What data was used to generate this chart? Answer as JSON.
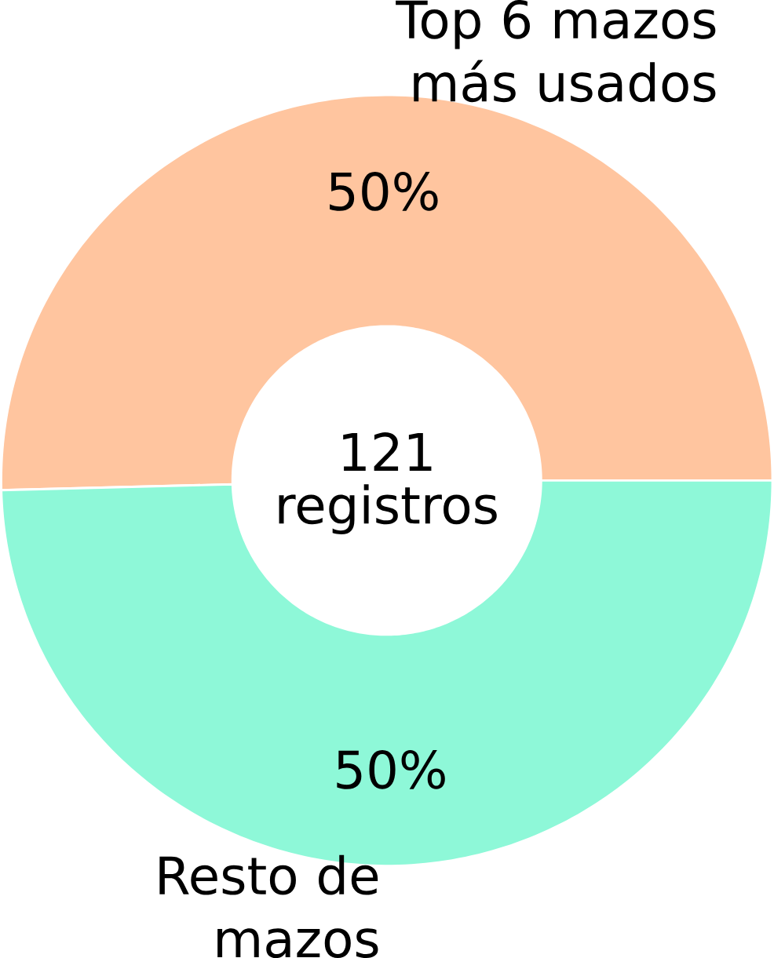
{
  "chart_data": {
    "type": "donut",
    "categories": [
      "Top 6 mazos más usados",
      "Resto de mazos"
    ],
    "values": [
      50.4,
      49.6
    ],
    "colors": [
      "#ffc59f",
      "#8ef8d8"
    ],
    "value_labels": [
      "50%",
      "50%"
    ],
    "annotations": [
      "121",
      "registros"
    ]
  }
}
